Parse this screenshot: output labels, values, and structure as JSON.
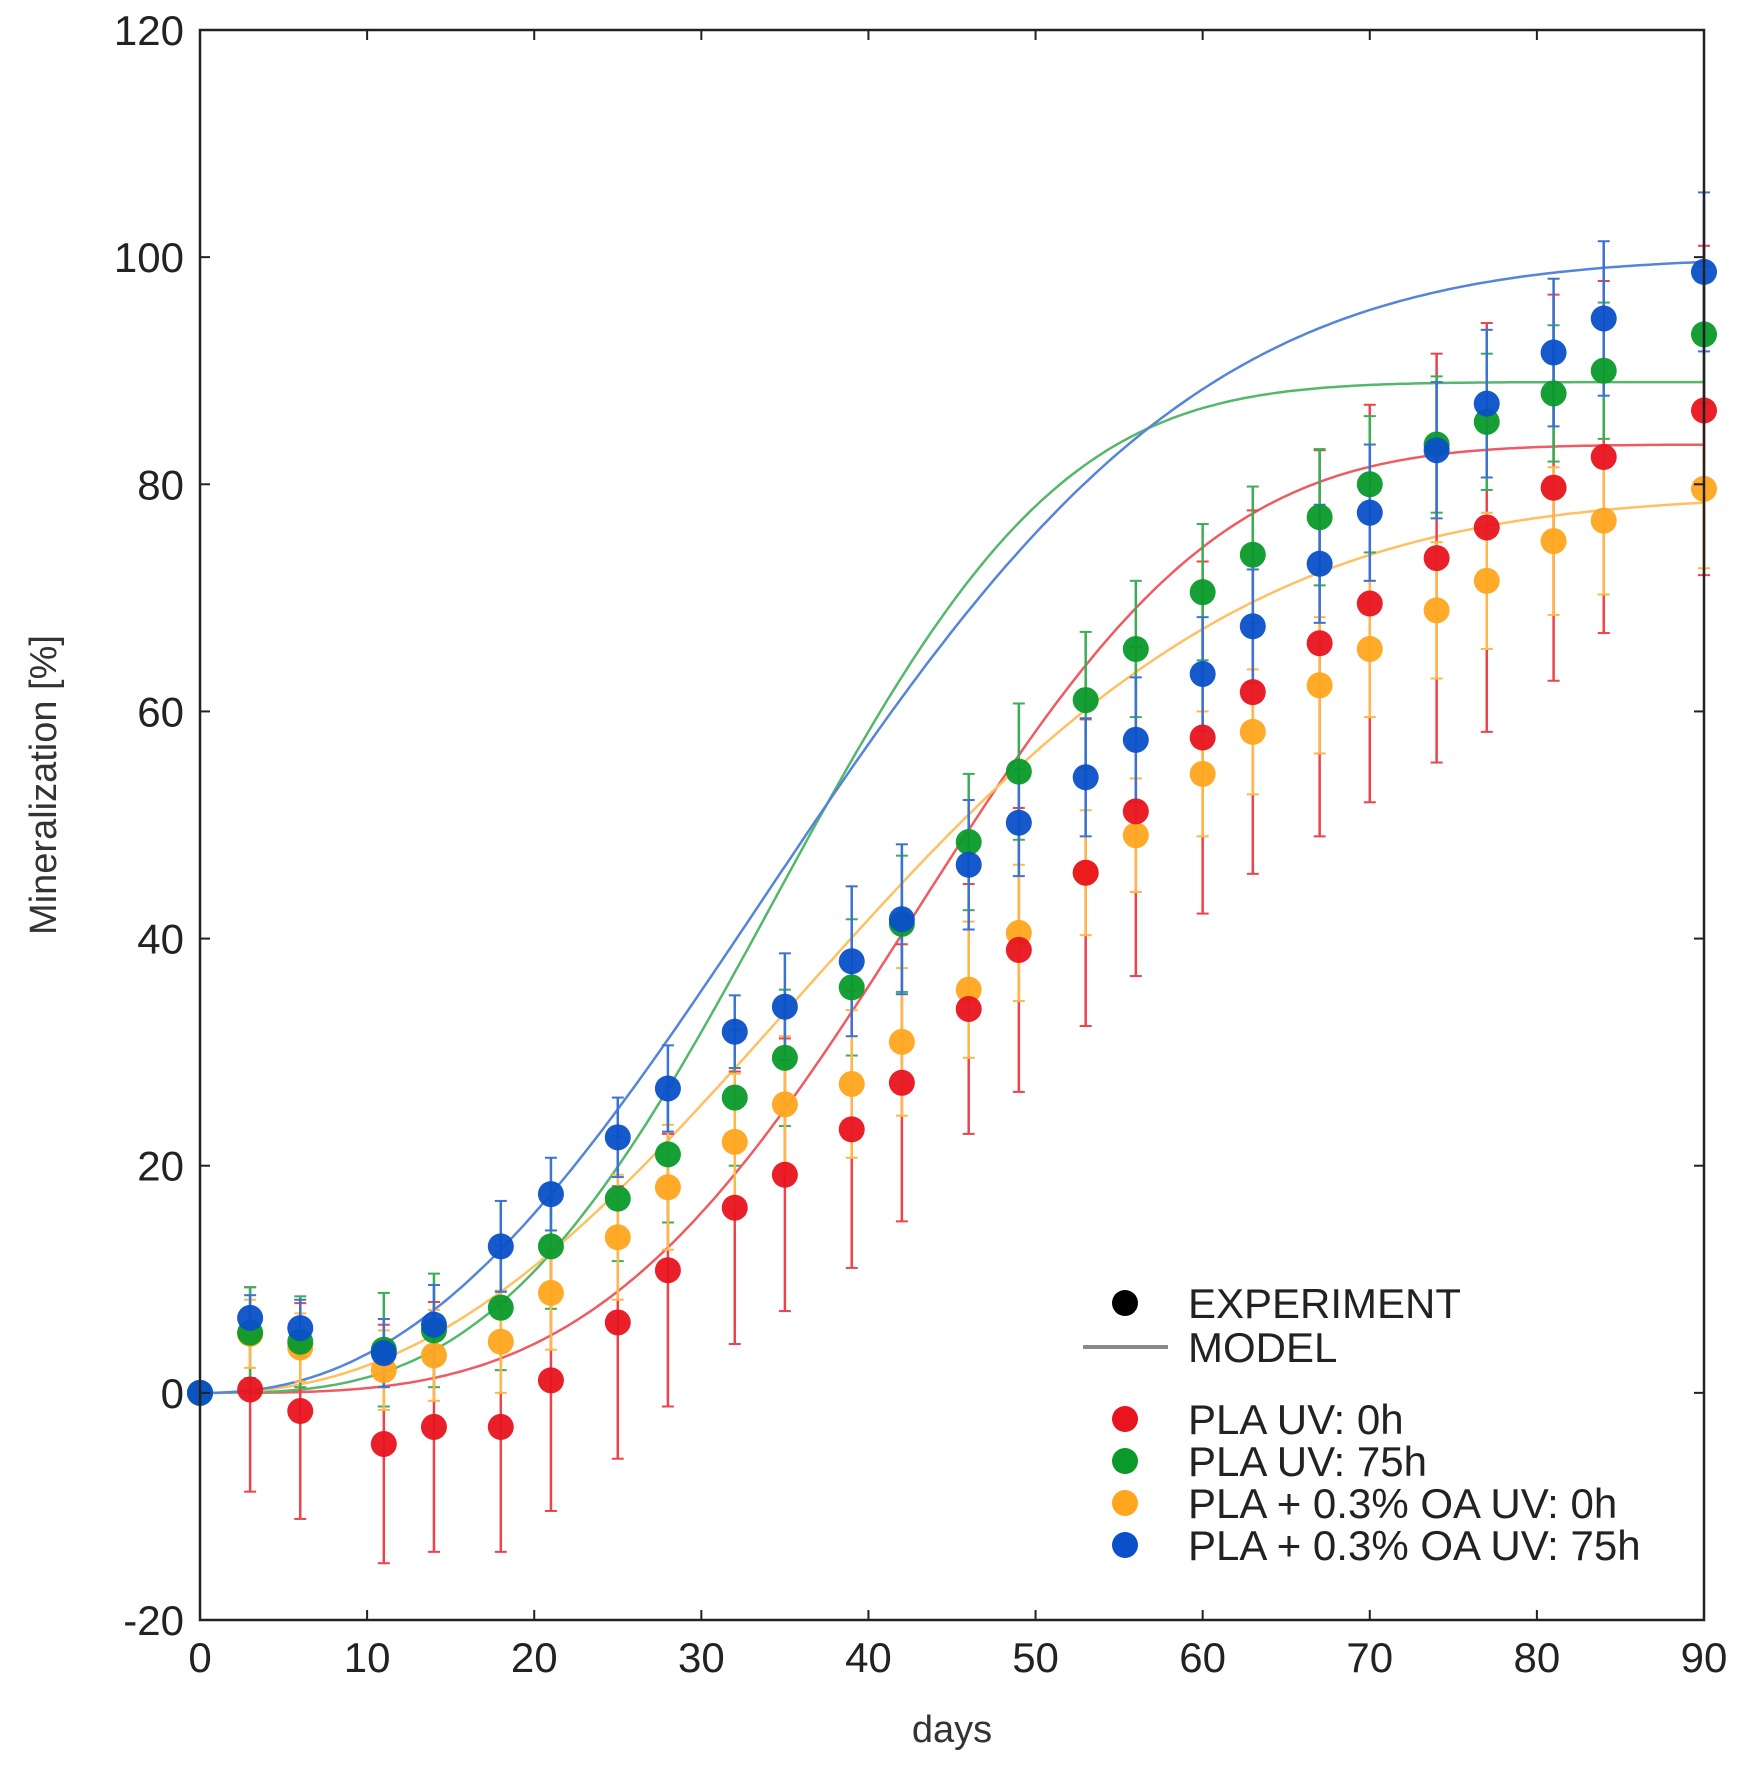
{
  "chart_data": {
    "type": "scatter",
    "xlabel": "days",
    "ylabel": "Mineralization [%]",
    "xlim": [
      0,
      90
    ],
    "ylim": [
      -20,
      120
    ],
    "xticks": [
      0,
      10,
      20,
      30,
      40,
      50,
      60,
      70,
      80,
      90
    ],
    "yticks": [
      -20,
      0,
      20,
      40,
      60,
      80,
      100,
      120
    ],
    "grid": false,
    "legend_position": "bottom-right",
    "legend": {
      "experiment_label": "EXPERIMENT",
      "model_label": "MODEL"
    },
    "x": [
      0,
      3,
      6,
      11,
      14,
      18,
      21,
      25,
      28,
      32,
      35,
      39,
      42,
      46,
      49,
      53,
      56,
      60,
      63,
      67,
      70,
      74,
      77,
      81,
      84,
      90
    ],
    "series": [
      {
        "name": "PLA UV: 0h",
        "color": "#e8141e",
        "y": [
          0,
          0.3,
          -1.6,
          -4.5,
          -3.0,
          -3.0,
          1.1,
          6.2,
          10.8,
          16.3,
          19.2,
          23.2,
          27.3,
          33.8,
          39.0,
          45.8,
          51.2,
          57.7,
          61.7,
          66.0,
          69.5,
          73.5,
          76.2,
          79.7,
          82.4,
          86.5
        ],
        "err": [
          0,
          9.0,
          9.5,
          10.5,
          11.0,
          11.0,
          11.5,
          12.0,
          12.0,
          12.0,
          12.0,
          12.2,
          12.2,
          11.0,
          12.5,
          13.5,
          14.5,
          15.5,
          16.0,
          17.0,
          17.5,
          18.0,
          18.0,
          17.0,
          15.5,
          14.5
        ],
        "model": {
          "A": 83.5,
          "k": 2e-06,
          "n": 3.4
        }
      },
      {
        "name": "PLA UV: 75h",
        "color": "#0a9a2a",
        "y": [
          0,
          5.3,
          4.5,
          3.8,
          5.5,
          7.5,
          12.9,
          17.1,
          21.0,
          26.0,
          29.5,
          35.7,
          41.3,
          48.5,
          54.7,
          61.0,
          65.5,
          70.5,
          73.8,
          77.1,
          80.0,
          83.5,
          85.5,
          88.0,
          90.0,
          93.2
        ],
        "err": [
          0,
          4.0,
          4.0,
          5.0,
          5.0,
          5.5,
          5.5,
          5.5,
          6.0,
          6.0,
          6.0,
          6.0,
          6.0,
          6.0,
          6.0,
          6.0,
          6.0,
          6.0,
          6.0,
          6.0,
          6.0,
          6.0,
          6.0,
          6.0,
          6.0,
          6.0
        ],
        "model": {
          "A": 89,
          "k": 1.38e-05,
          "n": 3.05
        }
      },
      {
        "name": "PLA + 0.3% OA UV: 0h",
        "color": "#ffa51e",
        "y": [
          0,
          5.2,
          4.0,
          2.0,
          3.3,
          4.5,
          8.8,
          13.7,
          18.1,
          22.1,
          25.4,
          27.2,
          30.9,
          35.5,
          40.5,
          45.8,
          49.1,
          54.5,
          58.2,
          62.3,
          65.5,
          68.9,
          71.5,
          75.0,
          76.8,
          79.6
        ],
        "err": [
          0,
          3.0,
          3.0,
          3.5,
          4.0,
          4.5,
          5.0,
          5.5,
          5.5,
          6.0,
          6.0,
          6.5,
          6.5,
          6.0,
          6.0,
          5.5,
          5.0,
          5.5,
          5.5,
          6.0,
          6.0,
          6.0,
          6.0,
          6.5,
          6.5,
          7.0
        ],
        "model": {
          "A": 79,
          "k": 0.000155,
          "n": 2.3
        }
      },
      {
        "name": "PLA + 0.3% OA UV: 75h",
        "color": "#0a50c8",
        "y": [
          0,
          6.6,
          5.7,
          3.5,
          6.0,
          12.9,
          17.5,
          22.5,
          26.8,
          31.8,
          34.0,
          38.0,
          41.7,
          46.5,
          50.2,
          54.2,
          57.5,
          63.3,
          67.5,
          73.0,
          77.5,
          83.0,
          87.1,
          91.6,
          94.6,
          98.7
        ],
        "err": [
          0,
          2.0,
          2.5,
          3.0,
          3.5,
          4.0,
          3.2,
          3.5,
          3.8,
          3.2,
          4.7,
          6.6,
          6.6,
          5.7,
          4.7,
          5.2,
          5.5,
          5.0,
          5.0,
          5.2,
          6.0,
          6.0,
          6.5,
          6.5,
          6.8,
          7.0
        ],
        "model": {
          "A": 100,
          "k": 0.000175,
          "n": 2.3
        }
      }
    ]
  }
}
